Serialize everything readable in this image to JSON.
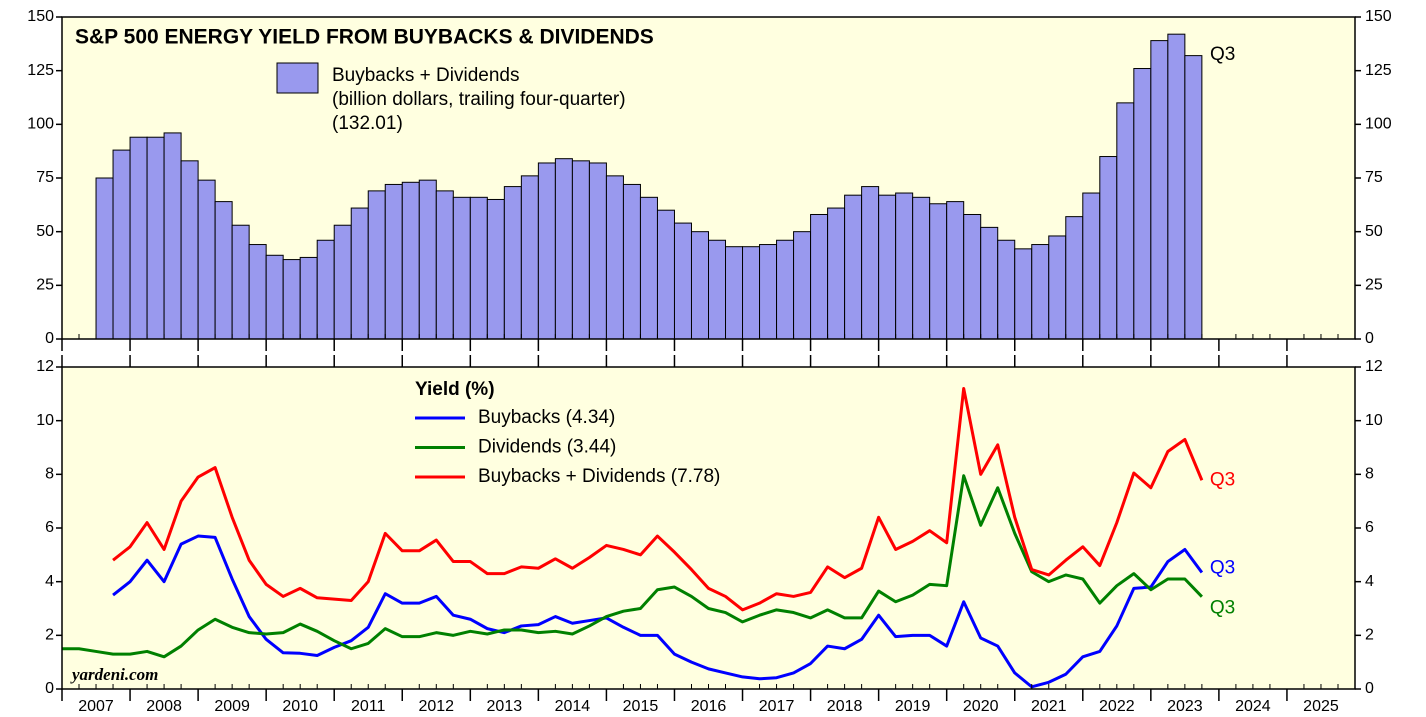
{
  "chart_data": [
    {
      "type": "bar",
      "title": "S&P 500 ENERGY YIELD FROM BUYBACKS & DIVIDENDS",
      "legend_lines": [
        "Buybacks + Dividends",
        "(billion dollars, trailing four-quarter)",
        "(132.01)"
      ],
      "annotation": "Q3",
      "color": "#9999ee",
      "xlim": [
        2007,
        2026
      ],
      "x": [
        2007.75,
        2008,
        2008.25,
        2008.5,
        2008.75,
        2009,
        2009.25,
        2009.5,
        2009.75,
        2010,
        2010.25,
        2010.5,
        2010.75,
        2011,
        2011.25,
        2011.5,
        2011.75,
        2012,
        2012.25,
        2012.5,
        2012.75,
        2013,
        2013.25,
        2013.5,
        2013.75,
        2014,
        2014.25,
        2014.5,
        2014.75,
        2015,
        2015.25,
        2015.5,
        2015.75,
        2016,
        2016.25,
        2016.5,
        2016.75,
        2017,
        2017.25,
        2017.5,
        2017.75,
        2018,
        2018.25,
        2018.5,
        2018.75,
        2019,
        2019.25,
        2019.5,
        2019.75,
        2020,
        2020.25,
        2020.5,
        2020.75,
        2021,
        2021.25,
        2021.5,
        2021.75,
        2022,
        2022.25,
        2022.5,
        2022.75,
        2023,
        2023.25,
        2023.5,
        2023.75
      ],
      "values": [
        75,
        88,
        94,
        94,
        96,
        83,
        74,
        64,
        53,
        44,
        39,
        37,
        38,
        46,
        53,
        61,
        69,
        72,
        73,
        74,
        69,
        66,
        66,
        65,
        71,
        76,
        82,
        84,
        83,
        82,
        76,
        72,
        66,
        60,
        54,
        50,
        46,
        43,
        43,
        44,
        46,
        50,
        58,
        61,
        67,
        71,
        67,
        68,
        66,
        63,
        64,
        58,
        52,
        46,
        42,
        44,
        48,
        57,
        68,
        85,
        110,
        126,
        139,
        142,
        132.01
      ],
      "ylim": [
        0,
        150
      ],
      "yticks": [
        0,
        25,
        50,
        75,
        100,
        125,
        150
      ]
    },
    {
      "type": "line",
      "legend_title": "Yield (%)",
      "source": "yardeni.com",
      "xlim": [
        2007,
        2026
      ],
      "xticks": [
        2007,
        2008,
        2009,
        2010,
        2011,
        2012,
        2013,
        2014,
        2015,
        2016,
        2017,
        2018,
        2019,
        2020,
        2021,
        2022,
        2023,
        2024,
        2025
      ],
      "ylim": [
        0,
        12
      ],
      "yticks": [
        0,
        2,
        4,
        6,
        8,
        10,
        12
      ],
      "x": [
        2007,
        2007.25,
        2007.5,
        2007.75,
        2008,
        2008.25,
        2008.5,
        2008.75,
        2009,
        2009.25,
        2009.5,
        2009.75,
        2010,
        2010.25,
        2010.5,
        2010.75,
        2011,
        2011.25,
        2011.5,
        2011.75,
        2012,
        2012.25,
        2012.5,
        2012.75,
        2013,
        2013.25,
        2013.5,
        2013.75,
        2014,
        2014.25,
        2014.5,
        2014.75,
        2015,
        2015.25,
        2015.5,
        2015.75,
        2016,
        2016.25,
        2016.5,
        2016.75,
        2017,
        2017.25,
        2017.5,
        2017.75,
        2018,
        2018.25,
        2018.5,
        2018.75,
        2019,
        2019.25,
        2019.5,
        2019.75,
        2020,
        2020.25,
        2020.5,
        2020.75,
        2021,
        2021.25,
        2021.5,
        2021.75,
        2022,
        2022.25,
        2022.5,
        2022.75,
        2023,
        2023.25,
        2023.5,
        2023.75
      ],
      "series": [
        {
          "name": "Buybacks (4.34)",
          "color": "#0000ff",
          "end_label": "Q3",
          "values": [
            null,
            null,
            null,
            3.5,
            4.0,
            4.8,
            4.0,
            5.4,
            5.7,
            5.65,
            4.1,
            2.7,
            1.85,
            1.35,
            1.33,
            1.25,
            1.55,
            1.8,
            2.3,
            3.55,
            3.2,
            3.2,
            3.45,
            2.75,
            2.6,
            2.25,
            2.1,
            2.35,
            2.4,
            2.7,
            2.45,
            2.55,
            2.65,
            2.3,
            2.0,
            2.0,
            1.3,
            1.0,
            0.75,
            0.6,
            0.45,
            0.38,
            0.42,
            0.6,
            0.95,
            1.6,
            1.5,
            1.85,
            2.75,
            1.95,
            2.0,
            2.0,
            1.6,
            3.25,
            1.9,
            1.6,
            0.6,
            0.08,
            0.25,
            0.55,
            1.2,
            1.4,
            2.35,
            3.75,
            3.8,
            4.75,
            5.2,
            4.34
          ]
        },
        {
          "name": "Dividends (3.44)",
          "color": "#008000",
          "end_label": "Q3",
          "values": [
            1.5,
            1.5,
            1.4,
            1.3,
            1.3,
            1.4,
            1.2,
            1.6,
            2.2,
            2.6,
            2.3,
            2.1,
            2.05,
            2.1,
            2.42,
            2.15,
            1.8,
            1.5,
            1.7,
            2.25,
            1.95,
            1.95,
            2.1,
            2.0,
            2.15,
            2.05,
            2.2,
            2.2,
            2.1,
            2.15,
            2.05,
            2.35,
            2.7,
            2.9,
            3.0,
            3.7,
            3.8,
            3.45,
            3.0,
            2.85,
            2.5,
            2.75,
            2.95,
            2.85,
            2.65,
            2.95,
            2.65,
            2.65,
            3.65,
            3.25,
            3.5,
            3.9,
            3.85,
            7.95,
            6.1,
            7.5,
            5.8,
            4.37,
            4.0,
            4.25,
            4.1,
            3.2,
            3.85,
            4.3,
            3.7,
            4.1,
            4.1,
            3.44
          ]
        },
        {
          "name": "Buybacks + Dividends (7.78)",
          "color": "#ff0000",
          "end_label": "Q3",
          "values": [
            null,
            null,
            null,
            4.8,
            5.3,
            6.2,
            5.2,
            7.0,
            7.9,
            8.25,
            6.4,
            4.8,
            3.9,
            3.45,
            3.75,
            3.4,
            3.35,
            3.3,
            4.0,
            5.8,
            5.15,
            5.15,
            5.55,
            4.75,
            4.75,
            4.3,
            4.3,
            4.55,
            4.5,
            4.85,
            4.5,
            4.9,
            5.35,
            5.2,
            5.0,
            5.7,
            5.1,
            4.45,
            3.75,
            3.45,
            2.95,
            3.2,
            3.55,
            3.45,
            3.6,
            4.55,
            4.15,
            4.5,
            6.4,
            5.2,
            5.5,
            5.9,
            5.45,
            11.2,
            8.0,
            9.1,
            6.4,
            4.45,
            4.25,
            4.8,
            5.3,
            4.6,
            6.2,
            8.05,
            7.5,
            8.85,
            9.3,
            7.78
          ]
        }
      ]
    }
  ]
}
